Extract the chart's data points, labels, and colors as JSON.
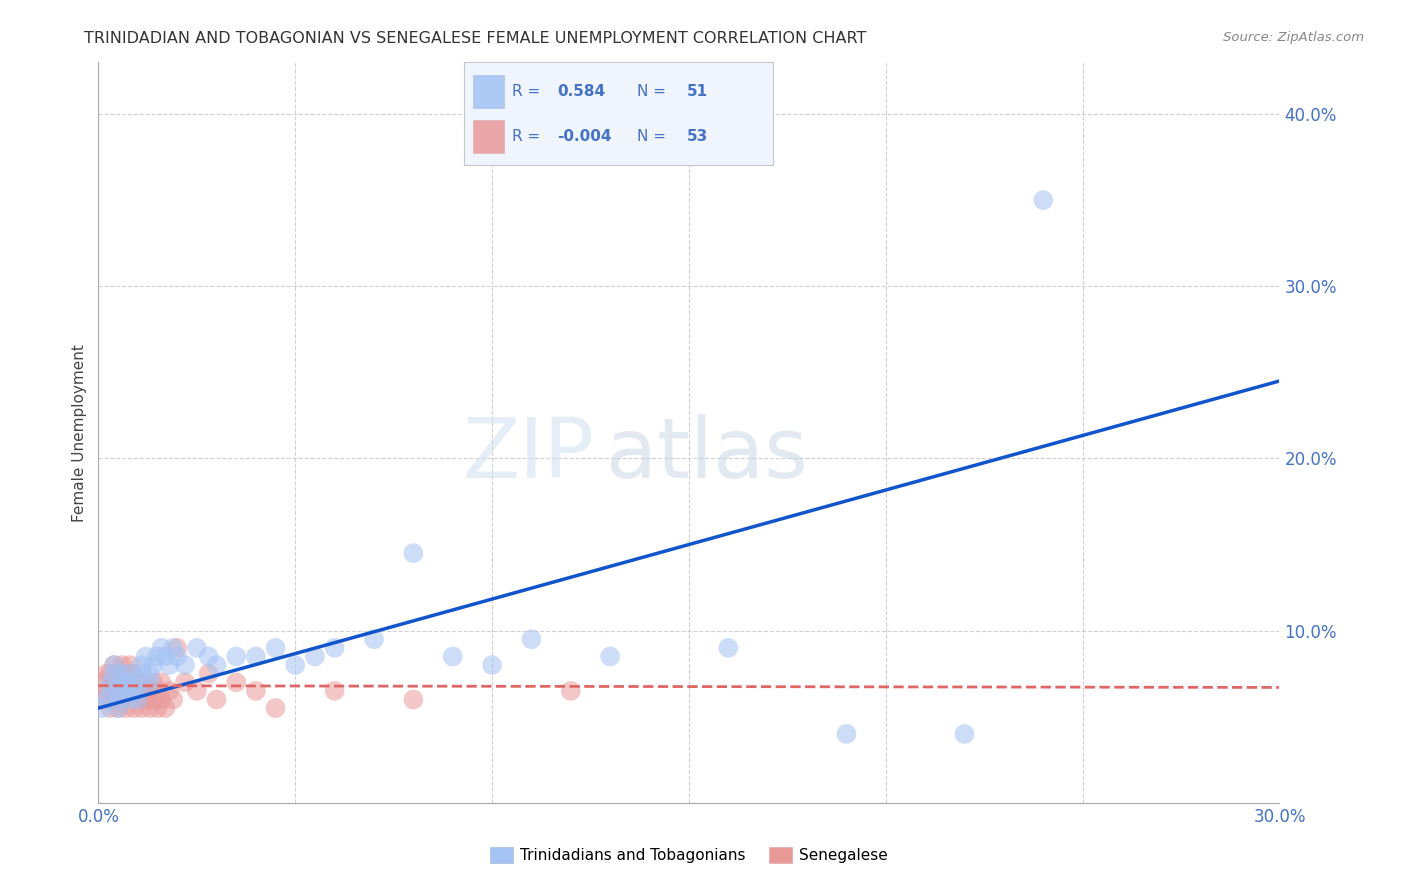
{
  "title": "TRINIDADIAN AND TOBAGONIAN VS SENEGALESE FEMALE UNEMPLOYMENT CORRELATION CHART",
  "source": "Source: ZipAtlas.com",
  "ylabel_label": "Female Unemployment",
  "xlim": [
    0.0,
    0.3
  ],
  "ylim": [
    0.0,
    0.43
  ],
  "xticks": [
    0.0,
    0.05,
    0.1,
    0.15,
    0.2,
    0.25,
    0.3
  ],
  "yticks": [
    0.0,
    0.1,
    0.2,
    0.3,
    0.4
  ],
  "ytick_labels": [
    "",
    "10.0%",
    "20.0%",
    "30.0%",
    "40.0%"
  ],
  "xtick_labels": [
    "0.0%",
    "",
    "",
    "",
    "",
    "",
    "30.0%"
  ],
  "blue_R": 0.584,
  "blue_N": 51,
  "pink_R": -0.004,
  "pink_N": 53,
  "blue_color": "#a4c2f4",
  "pink_color": "#ea9999",
  "blue_line_color": "#1155cc",
  "pink_line_color": "#e06666",
  "tick_color": "#4472c4",
  "legend_label_blue": "Trinidadians and Tobagonians",
  "legend_label_pink": "Senegalese",
  "blue_line_y0": 0.055,
  "blue_line_y1": 0.245,
  "pink_line_y0": 0.068,
  "pink_line_y1": 0.067,
  "blue_scatter_x": [
    0.001,
    0.002,
    0.003,
    0.003,
    0.004,
    0.004,
    0.005,
    0.005,
    0.005,
    0.006,
    0.006,
    0.007,
    0.007,
    0.008,
    0.008,
    0.009,
    0.009,
    0.01,
    0.01,
    0.011,
    0.011,
    0.012,
    0.013,
    0.013,
    0.014,
    0.015,
    0.016,
    0.017,
    0.018,
    0.019,
    0.02,
    0.022,
    0.025,
    0.028,
    0.03,
    0.035,
    0.04,
    0.045,
    0.05,
    0.055,
    0.06,
    0.07,
    0.08,
    0.09,
    0.1,
    0.11,
    0.13,
    0.16,
    0.19,
    0.22,
    0.24
  ],
  "blue_scatter_y": [
    0.055,
    0.06,
    0.065,
    0.07,
    0.075,
    0.08,
    0.055,
    0.06,
    0.065,
    0.07,
    0.075,
    0.065,
    0.07,
    0.06,
    0.075,
    0.065,
    0.07,
    0.06,
    0.065,
    0.075,
    0.08,
    0.085,
    0.07,
    0.075,
    0.08,
    0.085,
    0.09,
    0.085,
    0.08,
    0.09,
    0.085,
    0.08,
    0.09,
    0.085,
    0.08,
    0.085,
    0.085,
    0.09,
    0.08,
    0.085,
    0.09,
    0.095,
    0.145,
    0.085,
    0.08,
    0.095,
    0.085,
    0.09,
    0.04,
    0.04,
    0.35
  ],
  "pink_scatter_x": [
    0.001,
    0.001,
    0.002,
    0.002,
    0.003,
    0.003,
    0.003,
    0.004,
    0.004,
    0.004,
    0.005,
    0.005,
    0.005,
    0.006,
    0.006,
    0.006,
    0.007,
    0.007,
    0.007,
    0.008,
    0.008,
    0.008,
    0.009,
    0.009,
    0.009,
    0.01,
    0.01,
    0.011,
    0.011,
    0.012,
    0.012,
    0.013,
    0.013,
    0.014,
    0.014,
    0.015,
    0.015,
    0.016,
    0.016,
    0.017,
    0.018,
    0.019,
    0.02,
    0.022,
    0.025,
    0.028,
    0.03,
    0.035,
    0.04,
    0.045,
    0.06,
    0.08,
    0.12
  ],
  "pink_scatter_y": [
    0.06,
    0.07,
    0.065,
    0.075,
    0.055,
    0.065,
    0.075,
    0.06,
    0.07,
    0.08,
    0.055,
    0.065,
    0.075,
    0.06,
    0.07,
    0.08,
    0.055,
    0.065,
    0.075,
    0.06,
    0.07,
    0.08,
    0.055,
    0.065,
    0.075,
    0.06,
    0.07,
    0.055,
    0.065,
    0.06,
    0.07,
    0.055,
    0.065,
    0.06,
    0.07,
    0.055,
    0.065,
    0.06,
    0.07,
    0.055,
    0.065,
    0.06,
    0.09,
    0.07,
    0.065,
    0.075,
    0.06,
    0.07,
    0.065,
    0.055,
    0.065,
    0.06,
    0.065
  ]
}
